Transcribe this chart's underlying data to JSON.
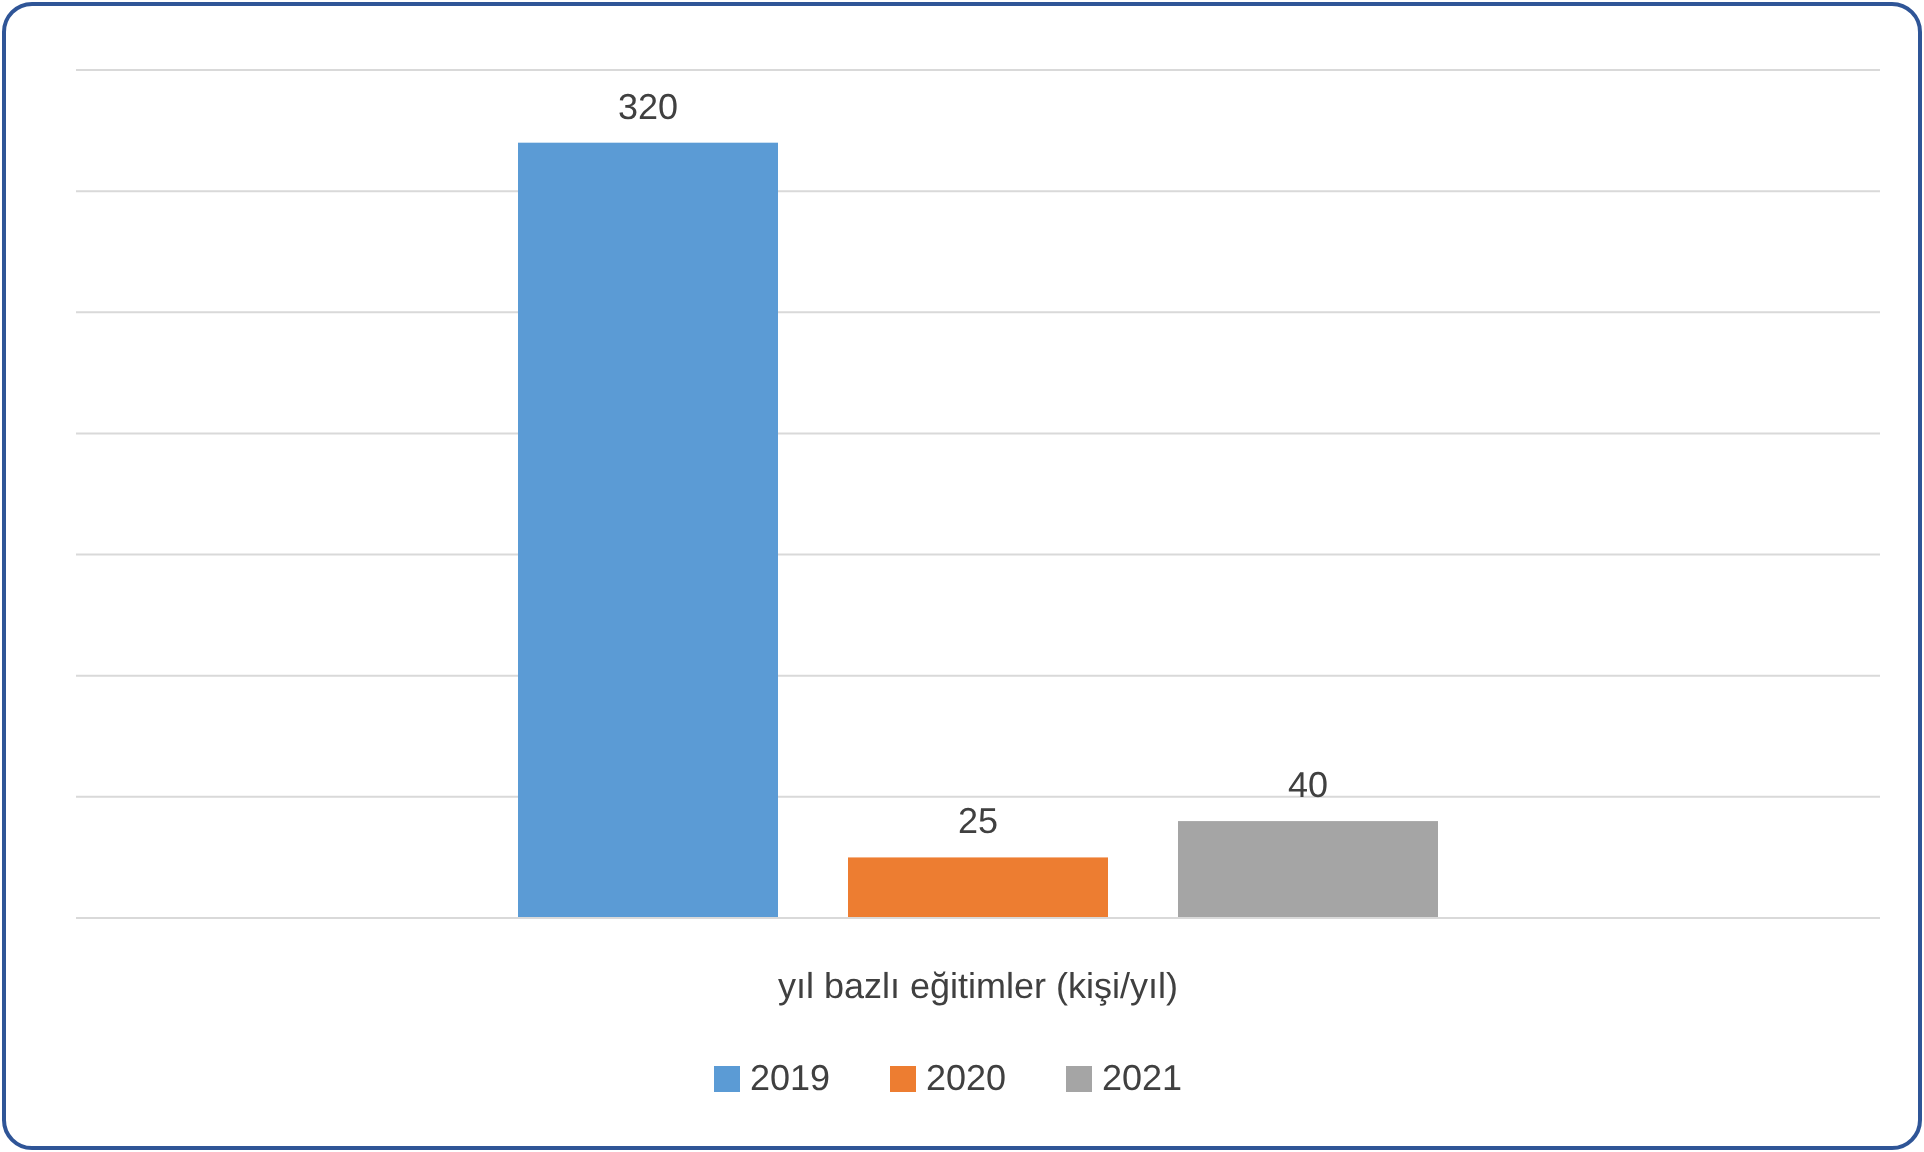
{
  "chart_data": {
    "type": "bar",
    "categories": [
      null
    ],
    "xlabel": "yıl bazlı eğitimler (kişi/yıl)",
    "series": [
      {
        "name": "2019",
        "color": "#5b9bd5",
        "values": [
          320
        ]
      },
      {
        "name": "2020",
        "color": "#ed7d31",
        "values": [
          25
        ]
      },
      {
        "name": "2021",
        "color": "#a5a5a5",
        "values": [
          40
        ]
      }
    ],
    "ylim": [
      0,
      350
    ],
    "yticks": [
      0,
      50,
      100,
      150,
      200,
      250,
      300,
      350
    ],
    "grid": "y",
    "data_labels": true,
    "legend": "bottom",
    "tick_labels": false
  }
}
